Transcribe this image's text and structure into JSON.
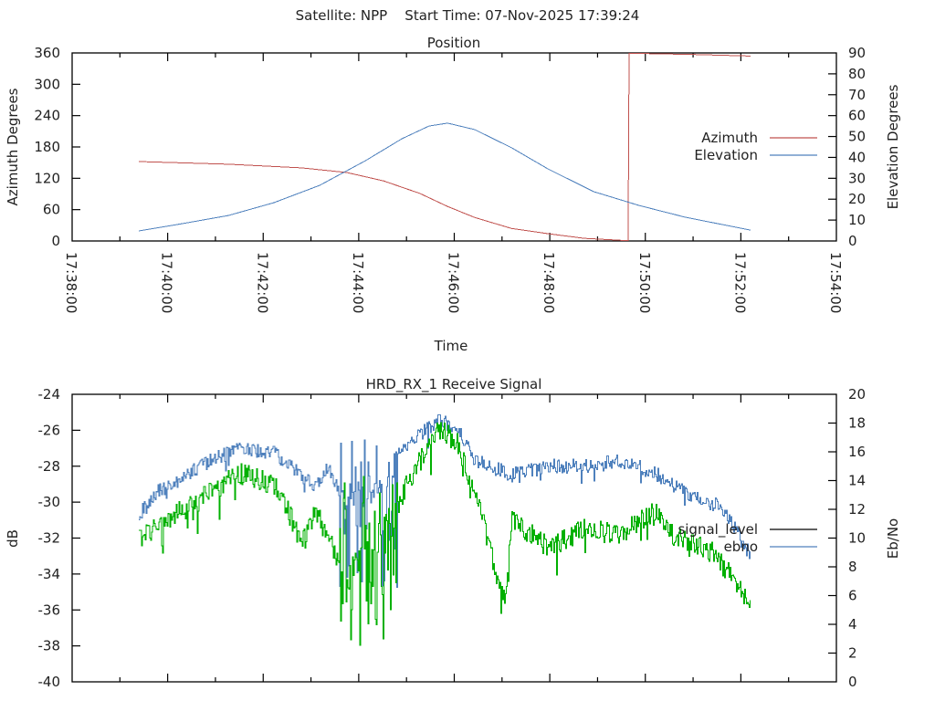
{
  "header": {
    "title": "Satellite: NPP    Start Time: 07-Nov-2025 17:39:24"
  },
  "chart_data": [
    {
      "type": "line",
      "title": "Position",
      "xlabel": "Time",
      "ylabel": "Azimuth Degrees",
      "y2label": "Elevation Degrees",
      "x_unit": "minutes after 17:38:00",
      "xlim": [
        0,
        16
      ],
      "ylim": [
        0,
        360
      ],
      "y2lim": [
        0,
        90
      ],
      "x_ticks": [
        0,
        2,
        4,
        6,
        8,
        10,
        12,
        14,
        16
      ],
      "x_tick_labels": [
        "17:38:00",
        "17:40:00",
        "17:42:00",
        "17:44:00",
        "17:46:00",
        "17:48:00",
        "17:50:00",
        "17:52:00",
        "17:54:00"
      ],
      "y_ticks": [
        0,
        60,
        120,
        180,
        240,
        300,
        360
      ],
      "y_tick_labels": [
        "0",
        "60",
        "120",
        "180",
        "240",
        "300",
        "360"
      ],
      "y2_ticks": [
        0,
        10,
        20,
        30,
        40,
        50,
        60,
        70,
        80,
        90
      ],
      "y2_tick_labels": [
        "0",
        "10",
        "20",
        "30",
        "40",
        "50",
        "60",
        "70",
        "80",
        "90"
      ],
      "legend_position": "right-center",
      "series": [
        {
          "name": "Azimuth",
          "axis": "y",
          "color": "#c0504d",
          "t": [
            1.4,
            3.27,
            4.8,
            5.75,
            6.52,
            7.28,
            7.86,
            8.43,
            9.2,
            9.96,
            10.72,
            11.64,
            11.66,
            11.93,
            13.02,
            14.2
          ],
          "values": [
            152,
            147,
            140,
            131,
            115,
            91,
            66,
            45,
            24,
            14,
            5,
            0.5,
            359,
            359,
            357,
            354
          ]
        },
        {
          "name": "Elevation",
          "axis": "y2",
          "color": "#4f81bd",
          "t": [
            1.4,
            2.31,
            3.27,
            4.22,
            5.18,
            6.14,
            6.9,
            7.47,
            7.86,
            8.43,
            9.2,
            9.96,
            10.92,
            11.87,
            12.83,
            14.2
          ],
          "values": [
            4.8,
            8.3,
            12.2,
            18.3,
            26.6,
            38.4,
            48.9,
            55.0,
            56.4,
            53.3,
            44.6,
            34.5,
            23.6,
            17.0,
            11.4,
            5.2
          ]
        }
      ]
    },
    {
      "type": "line",
      "title": "HRD_RX_1 Receive Signal",
      "ylabel": "dB",
      "y2label": "Eb/No",
      "x_unit": "minutes after 17:38:00",
      "xlim": [
        0,
        16
      ],
      "ylim": [
        -40,
        -24
      ],
      "y2lim": [
        0,
        20
      ],
      "y_ticks": [
        -40,
        -38,
        -36,
        -34,
        -32,
        -30,
        -28,
        -26,
        -24
      ],
      "y_tick_labels": [
        "-40",
        "-38",
        "-36",
        "-34",
        "-32",
        "-30",
        "-28",
        "-26",
        "-24"
      ],
      "y2_ticks": [
        0,
        2,
        4,
        6,
        8,
        10,
        12,
        14,
        16,
        18,
        20
      ],
      "y2_tick_labels": [
        "0",
        "2",
        "4",
        "6",
        "8",
        "10",
        "12",
        "14",
        "16",
        "18",
        "20"
      ],
      "legend_position": "right-center",
      "legend": [
        {
          "name": "signal_level",
          "color": "#000000"
        },
        {
          "name": "ebno",
          "color": "#4f81bd"
        }
      ],
      "series": [
        {
          "name": "signal_level",
          "axis": "y",
          "color": "#00b000",
          "t": [
            1.4,
            1.74,
            2.89,
            3.5,
            4.23,
            4.61,
            4.8,
            5.09,
            5.47,
            5.75,
            5.95,
            6.2,
            6.45,
            6.7,
            6.99,
            7.67,
            8.05,
            8.43,
            9.04,
            9.2,
            9.96,
            10.72,
            11.49,
            12.16,
            12.64,
            13.4,
            13.78,
            14.2
          ],
          "values": [
            -32.0,
            -31.4,
            -29.5,
            -28.4,
            -29.0,
            -31.0,
            -32.4,
            -30.5,
            -32.5,
            -34.6,
            -33.5,
            -32.0,
            -31.5,
            -31.0,
            -29.0,
            -25.9,
            -26.7,
            -29.5,
            -35.6,
            -31.0,
            -32.5,
            -31.5,
            -31.8,
            -30.5,
            -32.0,
            -32.8,
            -34.1,
            -35.8
          ],
          "noise_db": 0.6,
          "burst": {
            "t_start": 5.6,
            "t_end": 6.8,
            "min": -38.5,
            "max": -27.5
          }
        },
        {
          "name": "ebno",
          "axis": "y2",
          "color": "#4f81bd",
          "t": [
            1.4,
            1.74,
            2.89,
            3.56,
            4.23,
            4.8,
            5.09,
            5.37,
            5.66,
            5.95,
            6.45,
            6.9,
            7.67,
            8.05,
            8.43,
            9.2,
            9.96,
            10.72,
            11.49,
            12.26,
            12.99,
            13.59,
            14.2
          ],
          "values": [
            11.6,
            13.1,
            15.4,
            16.3,
            15.9,
            14.4,
            13.5,
            15.0,
            12.6,
            13.0,
            13.5,
            16.3,
            18.2,
            17.6,
            15.4,
            14.4,
            15.0,
            15.0,
            15.4,
            14.4,
            12.8,
            12.2,
            8.7
          ],
          "noise": 0.5,
          "burst": {
            "t_start": 5.6,
            "t_end": 6.8,
            "min": 6.0,
            "max": 17.0
          }
        }
      ]
    }
  ]
}
